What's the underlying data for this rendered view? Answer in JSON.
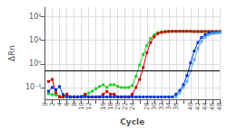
{
  "chart_data": {
    "type": "line",
    "xlabel": "Cycle",
    "ylabel": "ΔRn",
    "log": "y",
    "grid": true,
    "marker": "square",
    "xlim": [
      0,
      48
    ],
    "xticks": [
      0,
      2,
      4,
      6,
      8,
      10,
      12,
      {
        "value": 14,
        "label": null
      },
      16,
      18,
      20,
      22,
      24,
      {
        "value": 26,
        "label": null
      },
      28,
      30,
      32,
      34,
      36,
      {
        "value": 38,
        "label": null
      },
      40,
      42,
      44,
      46,
      48
    ],
    "ylim": [
      0.03162277660168379,
      251.18864315095823
    ],
    "yticks": [
      {
        "value": 0.1,
        "label": "10⁻¹"
      },
      {
        "value": 1,
        "label": "10⁰"
      },
      {
        "value": 10,
        "label": "10¹"
      },
      {
        "value": 100,
        "label": "10²"
      }
    ],
    "threshold": 0.5,
    "threshold_color": "#000000",
    "series": [
      {
        "color": "#22cc22",
        "x": [
          1,
          2,
          3,
          4,
          5,
          6,
          7,
          8,
          9,
          10,
          11,
          12,
          13,
          14,
          15,
          16,
          17,
          18,
          19,
          20,
          21,
          22,
          23,
          24,
          25,
          26,
          27,
          28,
          29,
          30,
          31,
          32,
          33,
          34,
          35,
          36,
          37,
          38,
          39,
          40,
          41,
          42,
          43,
          44,
          45,
          46,
          47,
          48
        ],
        "values": [
          0.055,
          0.05,
          0.048,
          0.042,
          0.04,
          0.04,
          0.04,
          0.04,
          0.04,
          0.042,
          0.05,
          0.058,
          0.07,
          0.09,
          0.11,
          0.13,
          0.1,
          0.13,
          0.13,
          0.11,
          0.1,
          0.1,
          0.1,
          0.12,
          0.3,
          0.9,
          2.5,
          6.0,
          12.0,
          17.0,
          21.0,
          22.5,
          23.5,
          24.0,
          24.0,
          24.0,
          24.0,
          24.0,
          24.0,
          24.0,
          23.5,
          23.5,
          23.5,
          23.5,
          23.5,
          23.5,
          23.5,
          23.5
        ]
      },
      {
        "color": "#cc0000",
        "x": [
          1,
          2,
          3,
          4,
          5,
          6,
          7,
          8,
          9,
          10,
          11,
          12,
          13,
          14,
          15,
          16,
          17,
          18,
          19,
          20,
          21,
          22,
          23,
          24,
          25,
          26,
          27,
          28,
          29,
          30,
          31,
          32,
          33,
          34,
          35,
          36,
          37,
          38,
          39,
          40,
          41,
          42,
          43,
          44,
          45,
          46,
          47,
          48
        ],
        "values": [
          0.18,
          0.22,
          0.06,
          0.04,
          0.04,
          0.052,
          0.04,
          0.04,
          0.04,
          0.04,
          0.052,
          0.04,
          0.04,
          0.04,
          0.04,
          0.052,
          0.068,
          0.052,
          0.052,
          0.04,
          0.04,
          0.04,
          0.04,
          0.052,
          0.1,
          0.22,
          0.7,
          3.0,
          8.0,
          14.0,
          19.0,
          21.5,
          23.0,
          23.5,
          24.0,
          24.0,
          24.0,
          24.0,
          24.0,
          24.0,
          23.5,
          23.5,
          23.5,
          23.5,
          23.5,
          23.5,
          23.5,
          23.5
        ]
      },
      {
        "color": "#0033cc",
        "x": [
          1,
          2,
          3,
          4,
          5,
          6,
          7,
          8,
          9,
          10,
          11,
          12,
          13,
          14,
          15,
          16,
          17,
          18,
          19,
          20,
          21,
          22,
          23,
          24,
          25,
          26,
          27,
          28,
          29,
          30,
          31,
          32,
          33,
          34,
          35,
          36,
          37,
          38,
          39,
          40,
          41,
          42,
          43,
          44,
          45,
          46,
          47,
          48
        ],
        "values": [
          0.07,
          0.1,
          0.08,
          0.11,
          0.05,
          0.04,
          0.04,
          0.04,
          0.04,
          0.04,
          0.04,
          0.04,
          0.04,
          0.04,
          0.04,
          0.04,
          0.04,
          0.04,
          0.04,
          0.04,
          0.04,
          0.04,
          0.04,
          0.04,
          0.04,
          0.04,
          0.04,
          0.04,
          0.04,
          0.04,
          0.04,
          0.04,
          0.04,
          0.04,
          0.04,
          0.052,
          0.075,
          0.13,
          0.32,
          1.1,
          3.5,
          8.0,
          13.0,
          17.0,
          19.5,
          20.5,
          21.0,
          21.5
        ]
      },
      {
        "color": "#55aaee",
        "x": [
          36,
          37,
          38,
          39,
          40,
          41,
          42,
          43,
          44,
          45,
          46,
          47,
          48
        ],
        "values": [
          0.04,
          0.06,
          0.1,
          0.18,
          0.5,
          1.5,
          4.5,
          9.0,
          13.5,
          17.0,
          19.0,
          20.0,
          21.0
        ]
      }
    ]
  }
}
